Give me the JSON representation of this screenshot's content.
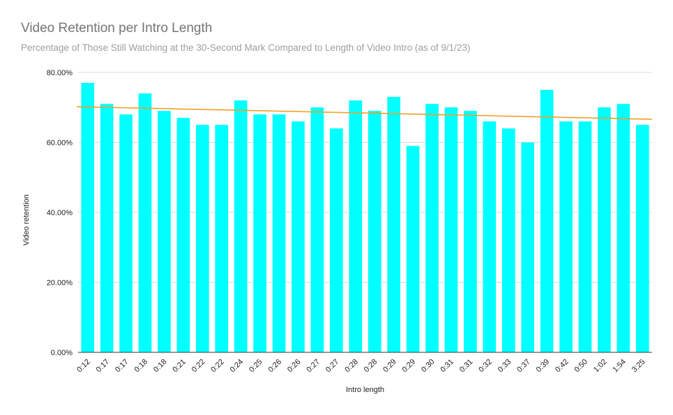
{
  "chart_data": {
    "type": "bar",
    "title": "Video Retention per Intro Length",
    "subtitle": "Percentage of Those Still Watching at the 30-Second Mark Compared to Length of Video Intro (as of 9/1/23)",
    "xlabel": "Intro length",
    "ylabel": "Video retention",
    "ylim": [
      0,
      80
    ],
    "yticks": [
      "0.00%",
      "20.00%",
      "40.00%",
      "60.00%",
      "80.00%"
    ],
    "grid": true,
    "legend": "none",
    "categories": [
      "0:12",
      "0:17",
      "0:17",
      "0:18",
      "0:18",
      "0:21",
      "0:22",
      "0:22",
      "0:24",
      "0:25",
      "0:26",
      "0:26",
      "0:27",
      "0:27",
      "0:28",
      "0:28",
      "0:29",
      "0:29",
      "0:30",
      "0:31",
      "0:31",
      "0:32",
      "0:33",
      "0:37",
      "0:39",
      "0:42",
      "0:50",
      "1:02",
      "1:54",
      "3:25"
    ],
    "values": [
      77,
      71,
      68,
      74,
      69,
      67,
      65,
      65,
      72,
      68,
      68,
      66,
      70,
      64,
      72,
      69,
      73,
      59,
      71,
      70,
      69,
      66,
      64,
      60,
      75,
      66,
      66,
      70,
      71,
      65
    ],
    "trendline": {
      "type": "linear",
      "start": 70.2,
      "end": 66.6
    },
    "colors": {
      "bar": "#00ffff",
      "trendline": "#f2a024",
      "grid": "#d9d9d9"
    }
  }
}
